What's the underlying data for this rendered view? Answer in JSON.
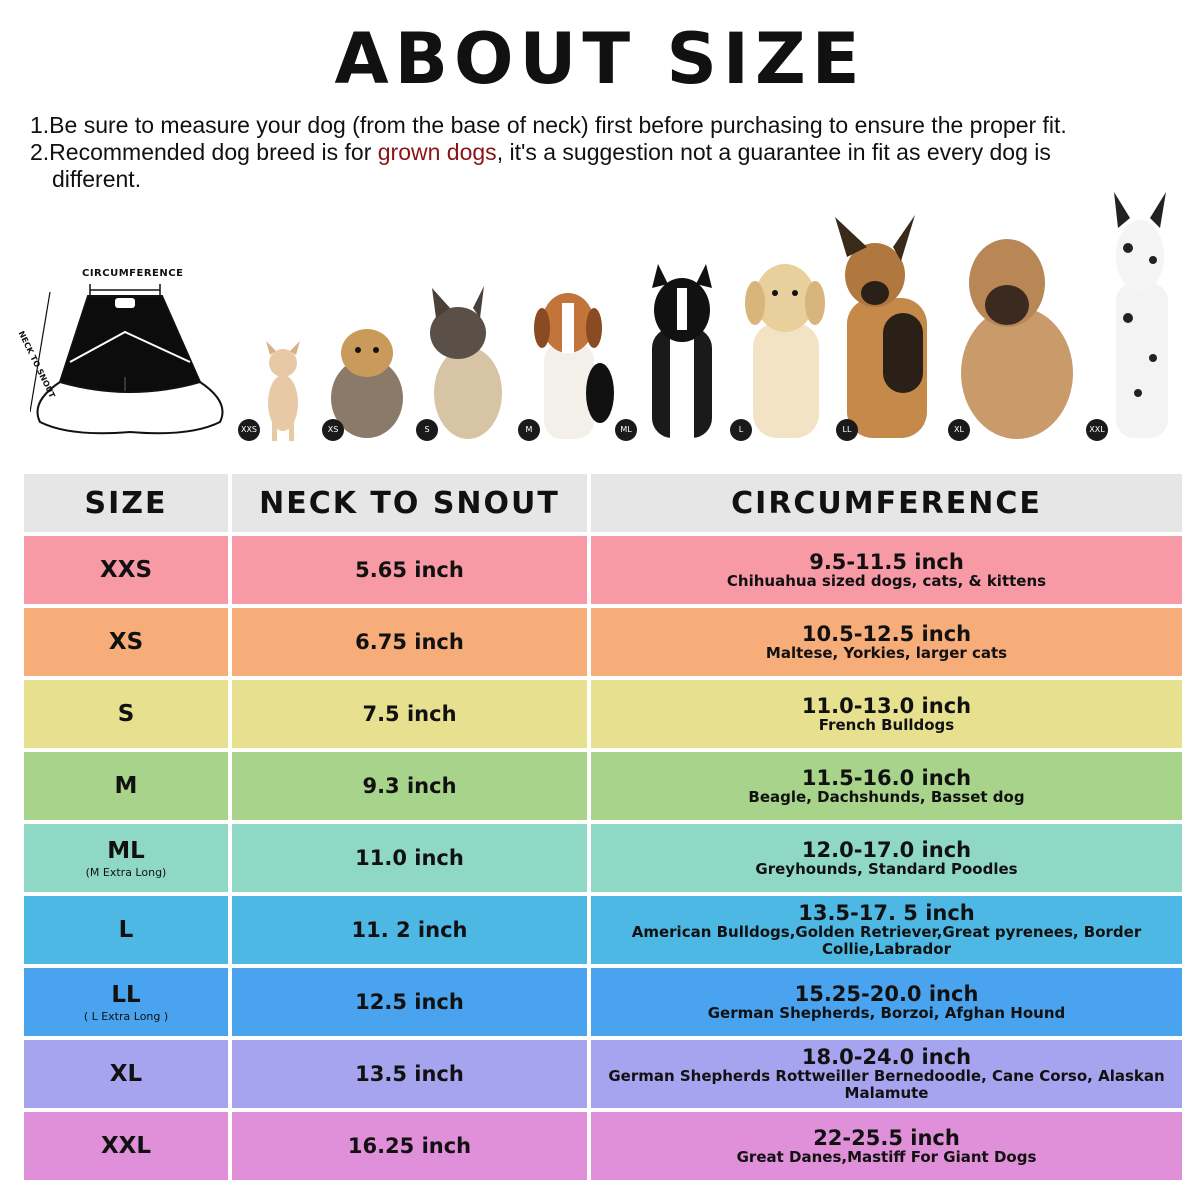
{
  "title": "ABOUT SIZE",
  "notes": {
    "line1": "1.Be sure to measure your dog (from the base of neck) first before purchasing to ensure the proper fit.",
    "line2_prefix": "2.Recommended dog breed is for ",
    "line2_highlight": "grown dogs",
    "line2_suffix": ", it's a  suggestion not a guarantee in fit as every dog is",
    "line3": "different."
  },
  "diagram": {
    "circumference_label": "CIRCUMFERENCE",
    "length_label": "NECK TO SNOUT"
  },
  "dog_badges": [
    "XXS",
    "XS",
    "S",
    "M",
    "ML",
    "L",
    "LL",
    "XL",
    "XXL"
  ],
  "table": {
    "headers": [
      "SIZE",
      "NECK TO SNOUT",
      "CIRCUMFERENCE"
    ],
    "rows": [
      {
        "size": "XXS",
        "sub": "",
        "neck": "5.65 inch",
        "circ": "9.5-11.5 inch",
        "breeds": "Chihuahua sized dogs, cats, & kittens",
        "color": "#f899a6"
      },
      {
        "size": "XS",
        "sub": "",
        "neck": "6.75 inch",
        "circ": "10.5-12.5 inch",
        "breeds": "Maltese, Yorkies, larger cats",
        "color": "#f7ad79"
      },
      {
        "size": "S",
        "sub": "",
        "neck": "7.5 inch",
        "circ": "11.0-13.0 inch",
        "breeds": "French Bulldogs",
        "color": "#e6e08f"
      },
      {
        "size": "M",
        "sub": "",
        "neck": "9.3 inch",
        "circ": "11.5-16.0 inch",
        "breeds": "Beagle, Dachshunds, Basset dog",
        "color": "#a8d38a"
      },
      {
        "size": "ML",
        "sub": "(M Extra Long)",
        "neck": "11.0 inch",
        "circ": "12.0-17.0 inch",
        "breeds": "Greyhounds, Standard Poodles",
        "color": "#8fd8c6"
      },
      {
        "size": "L",
        "sub": "",
        "neck": "11. 2 inch",
        "circ": "13.5-17. 5 inch",
        "breeds": "American Bulldogs,Golden Retriever,Great pyrenees, Border Collie,Labrador",
        "color": "#4db8e3"
      },
      {
        "size": "LL",
        "sub": "( L Extra Long )",
        "neck": "12.5 inch",
        "circ": "15.25-20.0 inch",
        "breeds": "German Shepherds, Borzoi, Afghan Hound",
        "color": "#4aa3ee"
      },
      {
        "size": "XL",
        "sub": "",
        "neck": "13.5 inch",
        "circ": "18.0-24.0 inch",
        "breeds": "German Shepherds Rottweiller Bernedoodle, Cane Corso, Alaskan Malamute",
        "color": "#a7a4ef"
      },
      {
        "size": "XXL",
        "sub": "",
        "neck": "16.25 inch",
        "circ": "22-25.5 inch",
        "breeds": "Great Danes,Mastiff For Giant Dogs",
        "color": "#e08fd9"
      }
    ]
  }
}
